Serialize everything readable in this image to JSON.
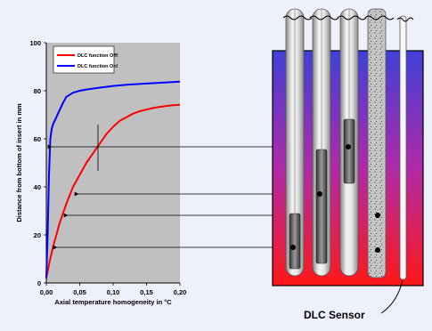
{
  "chart_data": {
    "type": "line",
    "title": "",
    "xlabel": "Axial temperature homogeneity in °C",
    "ylabel": "Distance from bottom of insert in mm",
    "xlim": [
      0,
      0.2
    ],
    "ylim": [
      0,
      100
    ],
    "x_ticks": [
      "0,00",
      "0,05",
      "0,10",
      "0,15",
      "0,20"
    ],
    "y_ticks": [
      "0",
      "20",
      "40",
      "60",
      "80",
      "100"
    ],
    "grid": false,
    "legend_position": "top-left",
    "series": [
      {
        "name": "DLC function Off!",
        "color": "#ff0000",
        "x": [
          0.0,
          0.005,
          0.01,
          0.015,
          0.02,
          0.03,
          0.04,
          0.05,
          0.06,
          0.07,
          0.08,
          0.09,
          0.1,
          0.11,
          0.12,
          0.13,
          0.14,
          0.15,
          0.16,
          0.17,
          0.18,
          0.19,
          0.2
        ],
        "values": [
          2,
          9,
          15,
          20,
          25,
          33,
          40,
          45,
          50,
          54,
          58,
          62,
          65,
          67.5,
          69,
          70.5,
          71.5,
          72.2,
          72.8,
          73.3,
          73.7,
          74.0,
          74.2
        ]
      },
      {
        "name": "DLC function On!",
        "color": "#0000ff",
        "x": [
          0.0,
          0.002,
          0.004,
          0.006,
          0.008,
          0.01,
          0.015,
          0.02,
          0.025,
          0.03,
          0.04,
          0.05,
          0.06,
          0.08,
          0.1,
          0.12,
          0.15,
          0.18,
          0.2
        ],
        "values": [
          2,
          20,
          45,
          60,
          64,
          66,
          69,
          72,
          75,
          77.5,
          79.2,
          80,
          80.5,
          81.3,
          82,
          82.5,
          83,
          83.5,
          83.8
        ]
      }
    ]
  },
  "diagram": {
    "sensor_label": "DLC Sensor",
    "well_gradient_top": "#4040d8",
    "well_gradient_bottom": "#ff1818"
  }
}
